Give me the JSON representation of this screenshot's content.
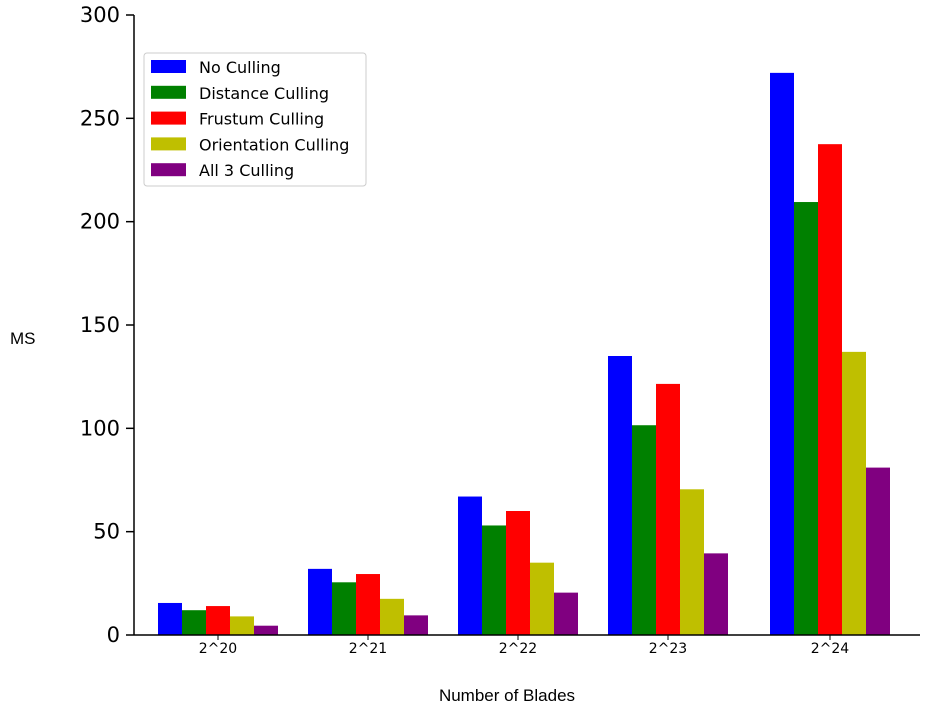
{
  "chart_data": {
    "type": "bar",
    "title": "",
    "xlabel": "Number of Blades",
    "ylabel": "MS",
    "ylim": [
      0,
      300
    ],
    "yticks": [
      0,
      50,
      100,
      150,
      200,
      250,
      300
    ],
    "categories": [
      "2^20",
      "2^21",
      "2^22",
      "2^23",
      "2^24"
    ],
    "legend_position": "top-left",
    "grid": false,
    "series": [
      {
        "name": "No Culling",
        "color": "#0000ff",
        "values": [
          15.5,
          32,
          67,
          135,
          272
        ]
      },
      {
        "name": "Distance Culling",
        "color": "#008000",
        "values": [
          12,
          25.5,
          53,
          101.5,
          209.5
        ]
      },
      {
        "name": "Frustum Culling",
        "color": "#ff0000",
        "values": [
          14,
          29.5,
          60,
          121.5,
          237.5
        ]
      },
      {
        "name": "Orientation Culling",
        "color": "#bfbf00",
        "values": [
          9,
          17.5,
          35,
          70.5,
          137
        ]
      },
      {
        "name": "All 3 Culling",
        "color": "#800080",
        "values": [
          4.5,
          9.5,
          20.5,
          39.5,
          81
        ]
      }
    ]
  }
}
